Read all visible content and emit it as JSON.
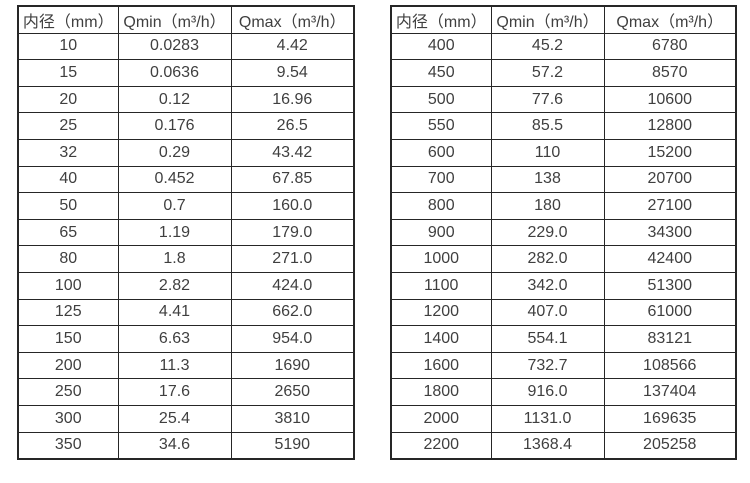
{
  "page": {
    "background_color": "#ffffff",
    "border_color": "#262626",
    "text_color": "#3f3f3f"
  },
  "left_table": {
    "headers": [
      "内径（mm）",
      "Qmin（m³/h）",
      "Qmax（m³/h）"
    ],
    "rows": [
      [
        "10",
        "0.0283",
        "4.42"
      ],
      [
        "15",
        "0.0636",
        "9.54"
      ],
      [
        "20",
        "0.12",
        "16.96"
      ],
      [
        "25",
        "0.176",
        "26.5"
      ],
      [
        "32",
        "0.29",
        "43.42"
      ],
      [
        "40",
        "0.452",
        "67.85"
      ],
      [
        "50",
        "0.7",
        "160.0"
      ],
      [
        "65",
        "1.19",
        "179.0"
      ],
      [
        "80",
        "1.8",
        "271.0"
      ],
      [
        "100",
        "2.82",
        "424.0"
      ],
      [
        "125",
        "4.41",
        "662.0"
      ],
      [
        "150",
        "6.63",
        "954.0"
      ],
      [
        "200",
        "11.3",
        "1690"
      ],
      [
        "250",
        "17.6",
        "2650"
      ],
      [
        "300",
        "25.4",
        "3810"
      ],
      [
        "350",
        "34.6",
        "5190"
      ]
    ]
  },
  "right_table": {
    "headers": [
      "内径（mm）",
      "Qmin（m³/h）",
      "Qmax（m³/h）"
    ],
    "rows": [
      [
        "400",
        "45.2",
        "6780"
      ],
      [
        "450",
        "57.2",
        "8570"
      ],
      [
        "500",
        "77.6",
        "10600"
      ],
      [
        "550",
        "85.5",
        "12800"
      ],
      [
        "600",
        "110",
        "15200"
      ],
      [
        "700",
        "138",
        "20700"
      ],
      [
        "800",
        "180",
        "27100"
      ],
      [
        "900",
        "229.0",
        "34300"
      ],
      [
        "1000",
        "282.0",
        "42400"
      ],
      [
        "1100",
        "342.0",
        "51300"
      ],
      [
        "1200",
        "407.0",
        "61000"
      ],
      [
        "1400",
        "554.1",
        "83121"
      ],
      [
        "1600",
        "732.7",
        "108566"
      ],
      [
        "1800",
        "916.0",
        "137404"
      ],
      [
        "2000",
        "1131.0",
        "169635"
      ],
      [
        "2200",
        "1368.4",
        "205258"
      ]
    ]
  }
}
